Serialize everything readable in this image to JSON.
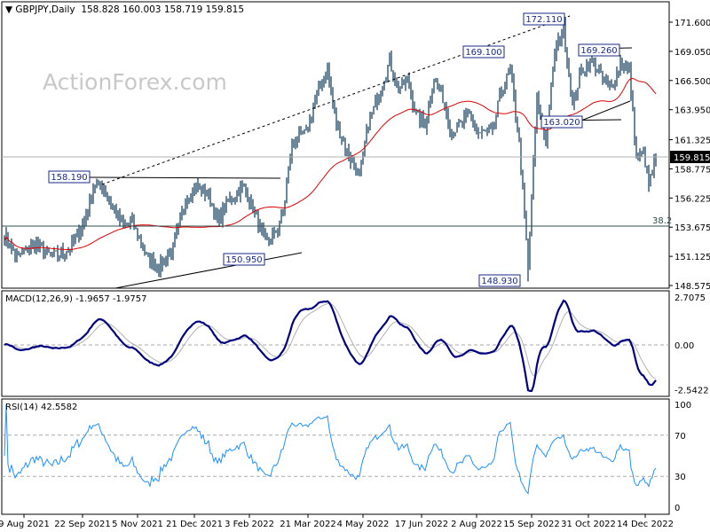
{
  "header": {
    "symbol": "GBPJPY,Daily",
    "ohlc": "158.828 160.003 158.719 159.815"
  },
  "watermark": "ActionForex.com",
  "chart_data": [
    {
      "type": "candlestick",
      "title": "GBPJPY,Daily",
      "ylim": [
        148.575,
        172.9
      ],
      "yticks": [
        "171.600",
        "169.050",
        "166.500",
        "163.950",
        "161.325",
        "158.775",
        "156.225",
        "153.675",
        "151.125",
        "148.575"
      ],
      "current_price": "159.815",
      "close_path": [
        [
          0,
          153.0
        ],
        [
          7,
          151.06
        ],
        [
          17,
          152.2
        ],
        [
          27,
          151.06
        ],
        [
          37,
          151.83
        ],
        [
          45,
          154.16
        ],
        [
          50,
          157.26
        ],
        [
          55,
          157.26
        ],
        [
          60,
          155.71
        ],
        [
          67,
          153.77
        ],
        [
          72,
          154.16
        ],
        [
          80,
          151.06
        ],
        [
          87,
          150.28
        ],
        [
          95,
          151.83
        ],
        [
          102,
          156.1
        ],
        [
          107,
          157.26
        ],
        [
          115,
          156.48
        ],
        [
          120,
          154.16
        ],
        [
          127,
          156.1
        ],
        [
          135,
          157.26
        ],
        [
          142,
          154.55
        ],
        [
          147,
          152.2
        ],
        [
          152,
          152.98
        ],
        [
          157,
          154.93
        ],
        [
          162,
          161.13
        ],
        [
          170,
          161.91
        ],
        [
          177,
          165.79
        ],
        [
          182,
          167.34
        ],
        [
          187,
          162.69
        ],
        [
          195,
          159.58
        ],
        [
          200,
          158.03
        ],
        [
          205,
          162.69
        ],
        [
          212,
          165.79
        ],
        [
          217,
          168.11
        ],
        [
          222,
          165.79
        ],
        [
          227,
          166.56
        ],
        [
          232,
          163.46
        ],
        [
          237,
          162.69
        ],
        [
          242,
          166.56
        ],
        [
          247,
          165.01
        ],
        [
          252,
          161.91
        ],
        [
          257,
          162.69
        ],
        [
          262,
          163.46
        ],
        [
          267,
          161.91
        ],
        [
          275,
          161.91
        ],
        [
          280,
          165.79
        ],
        [
          285,
          167.34
        ],
        [
          290,
          161.13
        ],
        [
          295,
          150.28
        ],
        [
          300,
          165.01
        ],
        [
          305,
          161.13
        ],
        [
          310,
          168.89
        ],
        [
          315,
          171.21
        ],
        [
          320,
          164.24
        ],
        [
          325,
          167.34
        ],
        [
          332,
          168.11
        ],
        [
          337,
          166.56
        ],
        [
          342,
          165.79
        ],
        [
          347,
          168.11
        ],
        [
          352,
          167.34
        ],
        [
          356,
          159.58
        ],
        [
          360,
          160.36
        ],
        [
          363,
          157.26
        ],
        [
          367,
          159.815
        ]
      ],
      "ma_label": "",
      "annotations": [
        {
          "text": "158.190",
          "price": 158.19
        },
        {
          "text": "150.950",
          "price": 150.95
        },
        {
          "text": "169.100",
          "price": 169.1
        },
        {
          "text": "172.110",
          "price": 172.11
        },
        {
          "text": "169.260",
          "price": 169.26
        },
        {
          "text": "163.020",
          "price": 163.02
        },
        {
          "text": "148.930",
          "price": 148.93
        }
      ],
      "fib_label": "38.2",
      "fib_price": 153.77,
      "colors": {
        "bars": "#0b3556",
        "ma": "#e00000",
        "support": "#000000"
      }
    },
    {
      "type": "line",
      "title": "MACD(12,26,9) -1.9657 -1.9757",
      "ylim": [
        -2.5422,
        2.7075
      ],
      "yticks": [
        "2.7075",
        "0.00",
        "-2.5422"
      ],
      "colors": {
        "macd": "#000080",
        "signal": "#b0b0b0"
      }
    },
    {
      "type": "line",
      "title": "RSI(14) 42.5582",
      "ylim": [
        0,
        100
      ],
      "yticks": [
        "100",
        "70",
        "30",
        "0"
      ],
      "colors": {
        "rsi": "#1e90ff"
      }
    }
  ],
  "xaxis": [
    {
      "label": "9 Aug 2021",
      "bar": 11
    },
    {
      "label": "22 Sep 2021",
      "bar": 44
    },
    {
      "label": "5 Nov 2021",
      "bar": 75
    },
    {
      "label": "21 Dec 2021",
      "bar": 107
    },
    {
      "label": "3 Feb 2022",
      "bar": 138
    },
    {
      "label": "21 Mar 2022",
      "bar": 171
    },
    {
      "label": "4 May 2022",
      "bar": 202
    },
    {
      "label": "17 Jun 2022",
      "bar": 235
    },
    {
      "label": "2 Aug 2022",
      "bar": 266
    },
    {
      "label": "15 Sep 2022",
      "bar": 297
    },
    {
      "label": "31 Oct 2022",
      "bar": 329
    },
    {
      "label": "14 Dec 2022",
      "bar": 361
    }
  ]
}
